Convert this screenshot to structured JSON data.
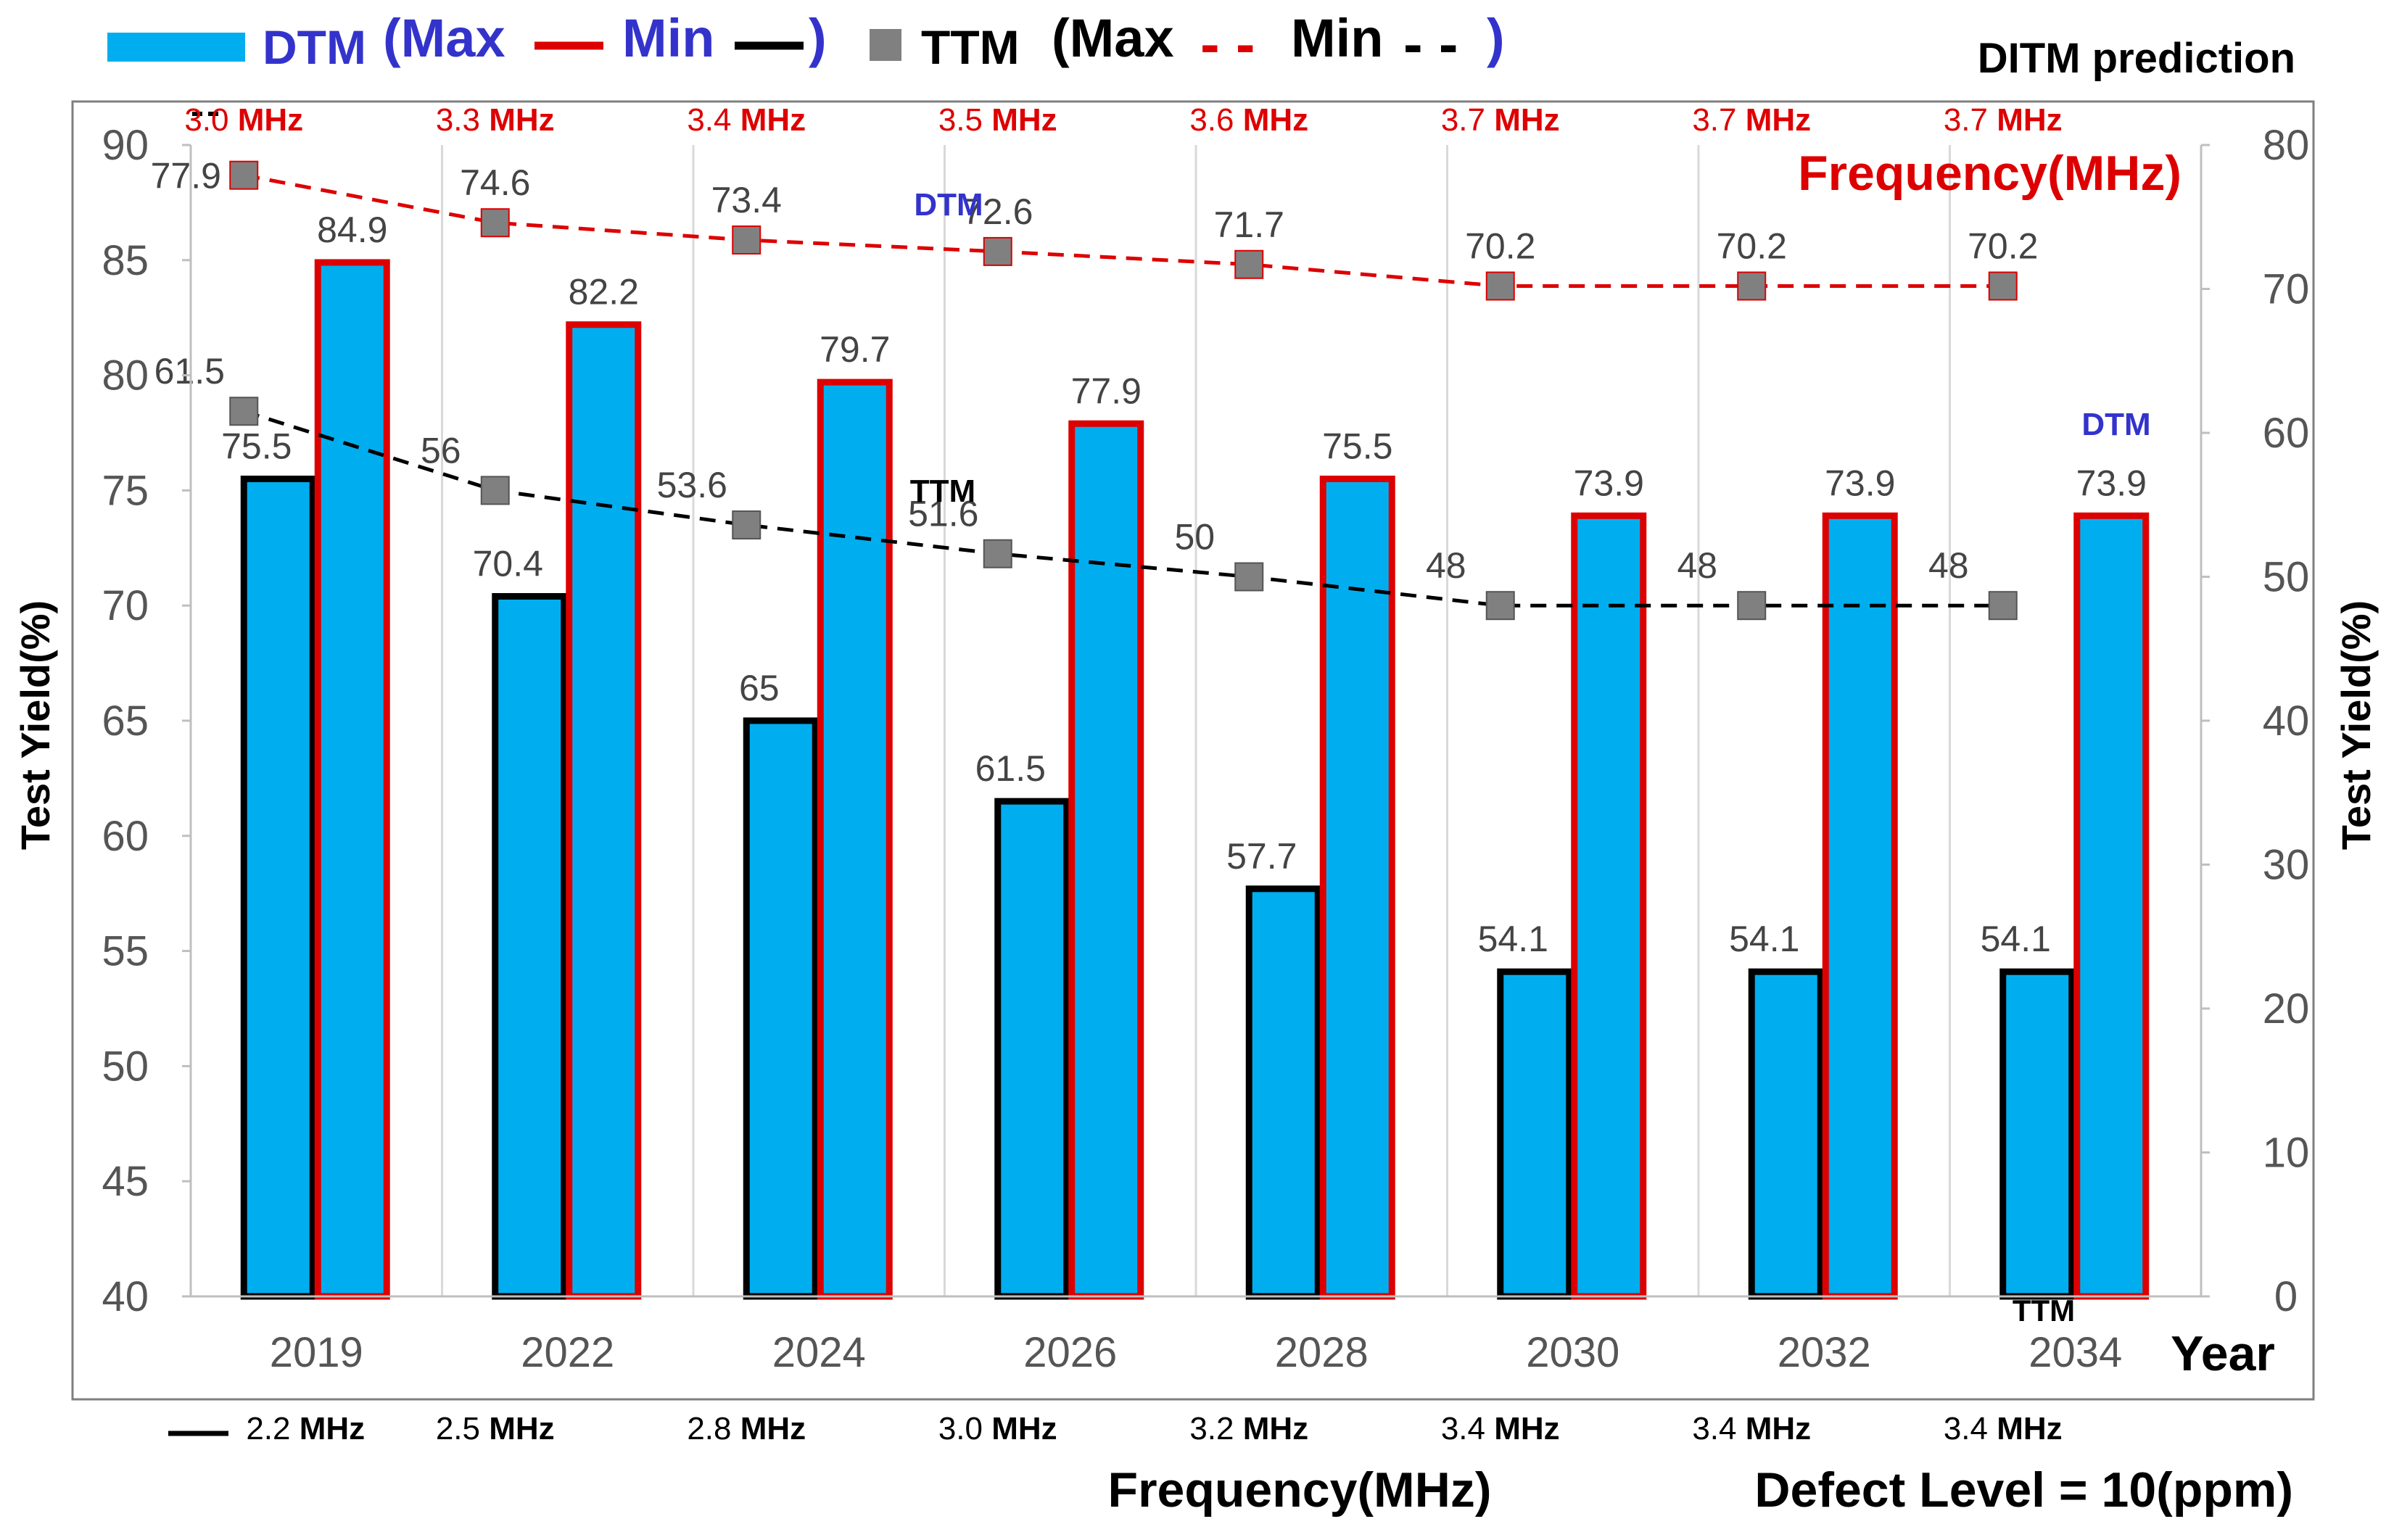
{
  "legend": {
    "dtm_label": "DTM",
    "dtm_max_label": "(Max",
    "dtm_min_label": "Min",
    "dtm_close": ")",
    "ttm_label": "TTM",
    "ttm_max_label": "(Max",
    "ttm_min_label": "Min",
    "ttm_close": ")",
    "dash_symbol": "- -",
    "dtm_color": "#00aeef",
    "max_color": "#dd0000",
    "min_color": "#000000",
    "ttm_marker_color": "#808080",
    "legend_text_color": "#3333cc"
  },
  "title": "DITM prediction",
  "annotations": {
    "frequency_right": "Frequency(MHz)",
    "dtm_tag_1": "DTM",
    "dtm_tag_2": "DTM",
    "ttm_tag_1": "TTM",
    "ttm_tag_2": "TTM",
    "bottom_frequency": "Frequency(MHz)",
    "defect_level": "Defect Level = 10(ppm)"
  },
  "chart_data": {
    "type": "bar",
    "title": "DITM prediction",
    "xlabel": "Year",
    "ylabel_left": "Test Yield(%)",
    "ylabel_right": "Test Yield(%)",
    "categories": [
      "2019",
      "2022",
      "2024",
      "2026",
      "2028",
      "2030",
      "2032",
      "2034"
    ],
    "ylim_left": [
      40,
      90
    ],
    "yticks_left": [
      40,
      45,
      50,
      55,
      60,
      65,
      70,
      75,
      80,
      85,
      90
    ],
    "ylim_right": [
      0,
      80
    ],
    "yticks_right": [
      0,
      10,
      20,
      30,
      40,
      50,
      60,
      70,
      80
    ],
    "grid": "vertical",
    "series": [
      {
        "name": "DTM Min",
        "kind": "bar",
        "axis": "left",
        "values": [
          75.5,
          70.4,
          65,
          61.5,
          57.7,
          54.1,
          54.1,
          54.1
        ],
        "labels": [
          "75.5",
          "70.4",
          "65",
          "61.5",
          "57.7",
          "54.1",
          "54.1",
          "54.1"
        ]
      },
      {
        "name": "DTM Max",
        "kind": "bar",
        "axis": "left",
        "values": [
          84.9,
          82.2,
          79.7,
          77.9,
          75.5,
          73.9,
          73.9,
          73.9
        ],
        "labels": [
          "84.9",
          "82.2",
          "79.7",
          "77.9",
          "75.5",
          "73.9",
          "73.9",
          "73.9"
        ]
      },
      {
        "name": "TTM Max",
        "kind": "line",
        "style": "dashed-red",
        "axis": "right",
        "values": [
          77.9,
          74.6,
          73.4,
          72.6,
          71.7,
          70.2,
          70.2,
          70.2
        ],
        "labels": [
          "77.9",
          "74.6",
          "73.4",
          "72.6",
          "71.7",
          "70.2",
          "70.2",
          "70.2"
        ]
      },
      {
        "name": "TTM Min",
        "kind": "line",
        "style": "dashed-black",
        "axis": "right",
        "values": [
          61.5,
          56,
          53.6,
          51.6,
          50,
          48,
          48,
          48
        ],
        "labels": [
          "61.5",
          "56",
          "53.6",
          "51.6",
          "50",
          "48",
          "48",
          "48"
        ]
      }
    ],
    "max_frequency": {
      "numbers": [
        "3.0",
        "3.3",
        "3.4",
        "3.5",
        "3.6",
        "3.7",
        "3.7",
        "3.7"
      ],
      "unit": "MHz"
    },
    "min_frequency": {
      "numbers": [
        "2.2",
        "2.5",
        "2.8",
        "3.0",
        "3.2",
        "3.4",
        "3.4",
        "3.4"
      ],
      "unit": "MHz"
    }
  }
}
